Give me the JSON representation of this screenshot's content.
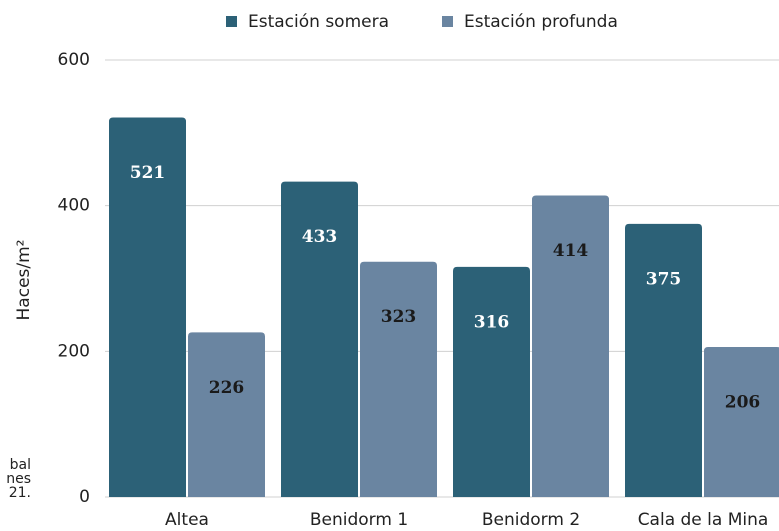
{
  "chart_data": {
    "type": "bar",
    "y_label": "Haces/m²",
    "categories": [
      "Altea",
      "Benidorm 1",
      "Benidorm 2",
      "Cala de la Mina"
    ],
    "series": [
      {
        "name": "Estación somera",
        "color": "#2c6177",
        "values": [
          521,
          433,
          316,
          375
        ]
      },
      {
        "name": "Estación profunda",
        "color": "#6a85a1",
        "values": [
          226,
          323,
          414,
          206
        ]
      }
    ],
    "ylim": [
      0,
      600
    ],
    "yticks": [
      0,
      200,
      400,
      600
    ],
    "grid": true,
    "legend": "top",
    "annotations": [
      "bal",
      "nes",
      "21."
    ]
  }
}
